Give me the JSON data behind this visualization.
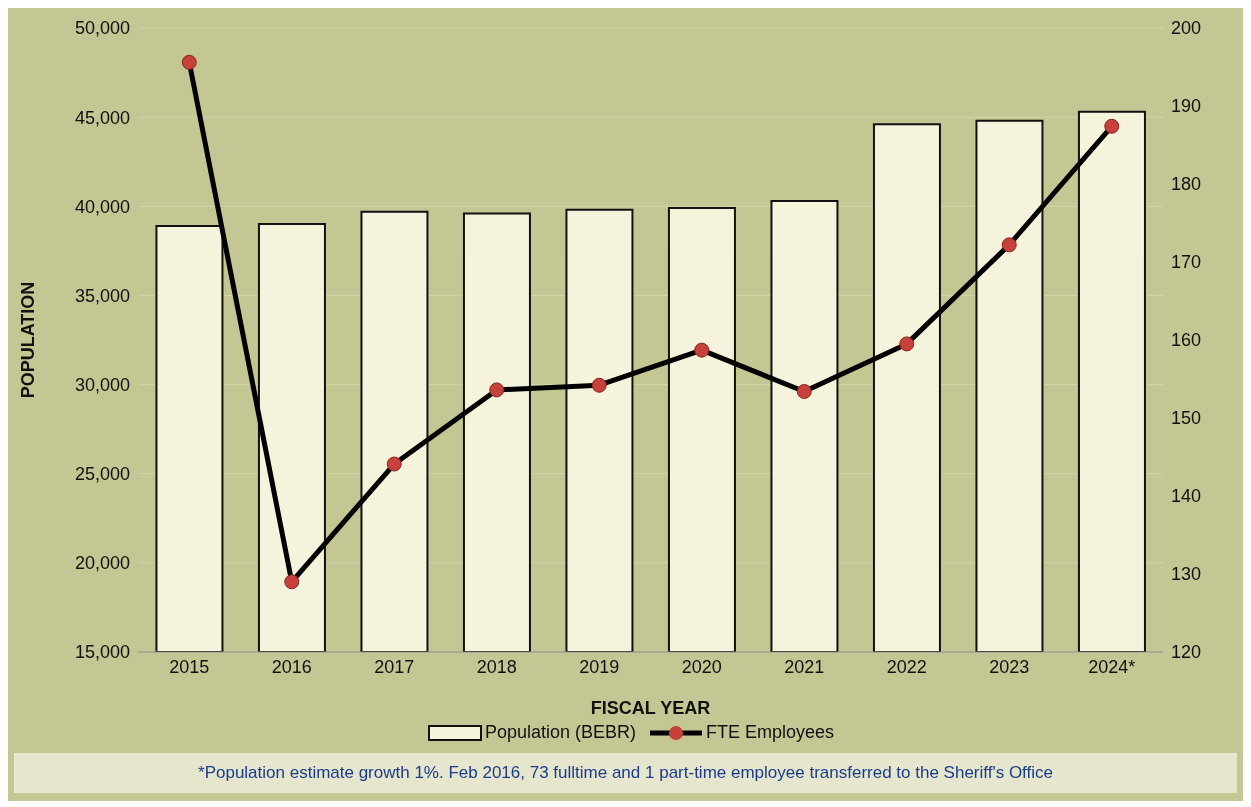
{
  "chart_data": {
    "type": "bar",
    "xlabel": "FISCAL YEAR",
    "ylabel": "POPULATION",
    "categories": [
      "2015",
      "2016",
      "2017",
      "2018",
      "2019",
      "2020",
      "2021",
      "2022",
      "2023",
      "2024*"
    ],
    "series": [
      {
        "name": "Population (BEBR)",
        "color": "#f5f3dc",
        "values": [
          38900,
          39000,
          39700,
          39600,
          39800,
          39900,
          40300,
          44600,
          44800,
          45300
        ]
      },
      {
        "name": "FTE Employees",
        "type": "line",
        "axis": "y2",
        "color": "#000000",
        "values": [
          195.6,
          129.0,
          144.1,
          153.6,
          154.2,
          158.7,
          153.4,
          159.5,
          172.2,
          187.4
        ]
      }
    ],
    "ylim": [
      15000,
      50000
    ],
    "yticks": [
      {
        "value": 15000,
        "label": "15,000"
      },
      {
        "value": 20000,
        "label": "20,000"
      },
      {
        "value": 25000,
        "label": "25,000"
      },
      {
        "value": 30000,
        "label": "30,000"
      },
      {
        "value": 35000,
        "label": "35,000"
      },
      {
        "value": 40000,
        "label": "40,000"
      },
      {
        "value": 45000,
        "label": "45,000"
      },
      {
        "value": 50000,
        "label": "50,000"
      }
    ],
    "y2lim": [
      120,
      200
    ],
    "y2ticks": [
      120,
      130,
      140,
      150,
      160,
      170,
      180,
      190,
      200
    ],
    "grid": "y",
    "legend": "bottom",
    "marker": "circle",
    "line_style": "solid",
    "annotations": [
      "*Population estimate growth 1%.     Feb  2016, 73 fulltime and 1 part-time employee transferred to the Sheriff's Office"
    ]
  }
}
